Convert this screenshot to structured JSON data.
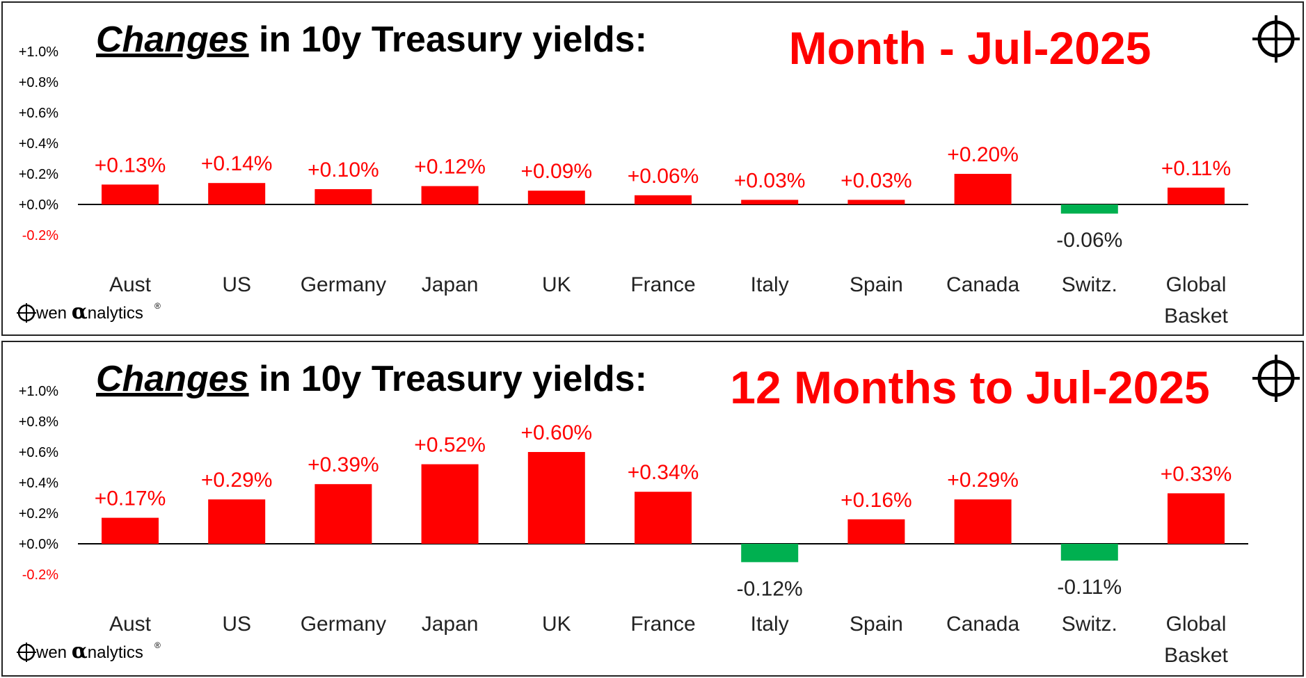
{
  "brand": {
    "logo_text": "wen analytics",
    "logo_alpha": "α",
    "logo_prefix": "O",
    "registered": "®",
    "crosshair_icon": "crosshair-icon"
  },
  "colors": {
    "positive": "#ff0000",
    "negative": "#00b050",
    "title_accent": "#ff0000",
    "axis": "#000000"
  },
  "chart_data": [
    {
      "type": "bar",
      "title_em": "Changes",
      "title_rest": " in 10y Treasury yields:",
      "period": "Month -  Jul-2025",
      "categories": [
        "Aust",
        "US",
        "Germany",
        "Japan",
        "UK",
        "France",
        "Italy",
        "Spain",
        "Canada",
        "Switz.",
        "Global Basket"
      ],
      "values": [
        0.13,
        0.14,
        0.1,
        0.12,
        0.09,
        0.06,
        0.03,
        0.03,
        0.2,
        -0.06,
        0.11
      ],
      "data_labels": [
        "+0.13%",
        "+0.14%",
        "+0.10%",
        "+0.12%",
        "+0.09%",
        "+0.06%",
        "+0.03%",
        "+0.03%",
        "+0.20%",
        "-0.06%",
        "+0.11%"
      ],
      "yticks": [
        "+1.0%",
        "+0.8%",
        "+0.6%",
        "+0.4%",
        "+0.2%",
        "+0.0%",
        "-0.2%"
      ],
      "ylim": [
        -0.2,
        1.0
      ],
      "unit": "%"
    },
    {
      "type": "bar",
      "title_em": "Changes",
      "title_rest": " in 10y Treasury yields:",
      "period": "12 Months to   Jul-2025",
      "categories": [
        "Aust",
        "US",
        "Germany",
        "Japan",
        "UK",
        "France",
        "Italy",
        "Spain",
        "Canada",
        "Switz.",
        "Global Basket"
      ],
      "values": [
        0.17,
        0.29,
        0.39,
        0.52,
        0.6,
        0.34,
        -0.12,
        0.16,
        0.29,
        -0.11,
        0.33
      ],
      "data_labels": [
        "+0.17%",
        "+0.29%",
        "+0.39%",
        "+0.52%",
        "+0.60%",
        "+0.34%",
        "-0.12%",
        "+0.16%",
        "+0.29%",
        "-0.11%",
        "+0.33%"
      ],
      "yticks": [
        "+1.0%",
        "+0.8%",
        "+0.6%",
        "+0.4%",
        "+0.2%",
        "+0.0%",
        "-0.2%"
      ],
      "ylim": [
        -0.2,
        1.0
      ],
      "unit": "%"
    }
  ]
}
